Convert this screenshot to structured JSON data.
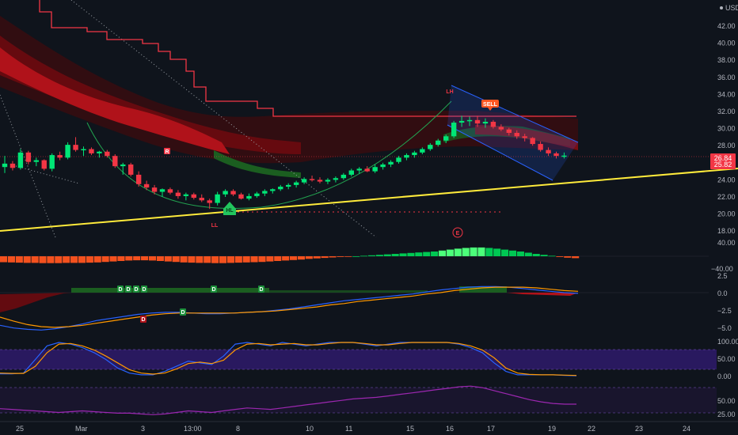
{
  "header": {
    "currency": "USD"
  },
  "chart_data": [
    {
      "type": "candlestick",
      "pane": "price",
      "yticks": [
        42.0,
        40.0,
        38.0,
        36.0,
        34.0,
        32.0,
        30.0,
        28.0,
        26.0,
        24.0,
        22.0,
        20.0,
        18.0
      ],
      "price_tags": [
        {
          "value": "26.84",
          "color": "#f23645"
        },
        {
          "value": "25.82",
          "color": "#f23645"
        }
      ],
      "candles": [
        [
          25.5,
          26.8,
          24.8,
          25.9
        ],
        [
          25.9,
          26.2,
          25.1,
          25.4
        ],
        [
          25.4,
          27.6,
          25.2,
          27.2
        ],
        [
          27.2,
          27.4,
          25.8,
          26.1
        ],
        [
          26.1,
          26.6,
          25.6,
          26.3
        ],
        [
          26.3,
          26.4,
          25.1,
          25.3
        ],
        [
          25.3,
          27.1,
          25.0,
          26.9
        ],
        [
          26.9,
          27.3,
          26.3,
          26.6
        ],
        [
          26.6,
          28.4,
          26.4,
          28.1
        ],
        [
          28.1,
          29.0,
          27.3,
          27.5
        ],
        [
          27.5,
          27.9,
          26.8,
          27.6
        ],
        [
          27.6,
          27.8,
          26.9,
          27.1
        ],
        [
          27.1,
          27.4,
          26.6,
          27.3
        ],
        [
          27.3,
          27.5,
          26.6,
          26.8
        ],
        [
          26.8,
          27.0,
          25.4,
          25.6
        ],
        [
          25.6,
          26.0,
          24.6,
          25.8
        ],
        [
          25.8,
          26.0,
          24.4,
          24.6
        ],
        [
          24.6,
          25.0,
          23.2,
          23.5
        ],
        [
          23.5,
          23.9,
          22.8,
          23.1
        ],
        [
          23.1,
          23.4,
          22.3,
          22.6
        ],
        [
          22.6,
          23.0,
          22.0,
          22.9
        ],
        [
          22.9,
          23.1,
          22.3,
          22.5
        ],
        [
          22.5,
          22.8,
          21.8,
          22.1
        ],
        [
          22.1,
          22.5,
          21.6,
          22.3
        ],
        [
          22.3,
          22.5,
          21.7,
          21.9
        ],
        [
          21.9,
          22.3,
          21.4,
          21.6
        ],
        [
          21.6,
          21.8,
          20.6,
          21.3
        ],
        [
          21.3,
          22.6,
          21.0,
          22.3
        ],
        [
          22.3,
          22.9,
          22.0,
          22.7
        ],
        [
          22.7,
          22.9,
          22.1,
          22.3
        ],
        [
          22.3,
          22.5,
          21.7,
          21.8
        ],
        [
          21.8,
          22.4,
          21.6,
          22.1
        ],
        [
          22.1,
          22.6,
          21.9,
          22.4
        ],
        [
          22.4,
          22.9,
          22.1,
          22.7
        ],
        [
          22.7,
          23.0,
          22.4,
          22.9
        ],
        [
          22.9,
          23.4,
          22.7,
          23.2
        ],
        [
          23.2,
          23.6,
          22.9,
          23.4
        ],
        [
          23.4,
          23.9,
          23.1,
          23.7
        ],
        [
          23.7,
          24.3,
          23.5,
          24.1
        ],
        [
          24.1,
          24.5,
          23.8,
          24.0
        ],
        [
          24.0,
          24.3,
          23.6,
          23.8
        ],
        [
          23.8,
          24.2,
          23.5,
          24.0
        ],
        [
          24.0,
          24.4,
          23.7,
          24.2
        ],
        [
          24.2,
          24.8,
          24.0,
          24.6
        ],
        [
          24.6,
          25.3,
          24.4,
          25.1
        ],
        [
          25.1,
          25.5,
          24.7,
          25.3
        ],
        [
          25.3,
          25.6,
          24.9,
          25.0
        ],
        [
          25.0,
          25.8,
          24.8,
          25.5
        ],
        [
          25.5,
          26.0,
          25.2,
          25.8
        ],
        [
          25.8,
          26.3,
          25.5,
          26.1
        ],
        [
          26.1,
          26.8,
          25.9,
          26.6
        ],
        [
          26.6,
          27.1,
          26.3,
          26.9
        ],
        [
          26.9,
          27.4,
          26.6,
          27.2
        ],
        [
          27.2,
          27.8,
          27.0,
          27.6
        ],
        [
          27.6,
          28.3,
          27.4,
          28.1
        ],
        [
          28.1,
          28.8,
          27.9,
          28.6
        ],
        [
          28.6,
          29.3,
          28.3,
          29.1
        ],
        [
          29.1,
          30.9,
          28.9,
          30.7
        ],
        [
          30.7,
          31.5,
          30.2,
          30.9
        ],
        [
          30.9,
          31.4,
          30.3,
          31.0
        ],
        [
          31.0,
          31.5,
          30.2,
          30.6
        ],
        [
          30.6,
          31.2,
          30.1,
          30.8
        ],
        [
          30.8,
          31.0,
          30.0,
          30.2
        ],
        [
          30.2,
          30.5,
          29.7,
          29.9
        ],
        [
          29.9,
          30.1,
          29.2,
          29.5
        ],
        [
          29.5,
          29.8,
          28.8,
          29.1
        ],
        [
          29.1,
          29.4,
          28.5,
          28.9
        ],
        [
          28.9,
          29.0,
          28.0,
          28.2
        ],
        [
          28.2,
          28.5,
          27.3,
          27.5
        ],
        [
          27.5,
          27.8,
          26.8,
          27.1
        ],
        [
          27.1,
          27.3,
          26.5,
          26.8
        ],
        [
          26.8,
          27.2,
          26.5,
          26.84
        ]
      ],
      "annotations": [
        "R",
        "LH",
        "SELL",
        "LL",
        "HL",
        "E"
      ]
    },
    {
      "type": "histogram",
      "pane": "momentum",
      "yticks": [
        "40.00",
        "−40.00"
      ],
      "values": [
        -25,
        -26,
        -27,
        -28,
        -28,
        -29,
        -29,
        -29,
        -28,
        -28,
        -28,
        -27,
        -26,
        -24,
        -22,
        -20,
        -18,
        -17,
        -17,
        -18,
        -20,
        -22,
        -24,
        -26,
        -27,
        -28,
        -28,
        -29,
        -29,
        -28,
        -27,
        -26,
        -25,
        -24,
        -22,
        -20,
        -18,
        -16,
        -14,
        -11,
        -9,
        -7,
        -5,
        -3,
        -2,
        0,
        2,
        4,
        6,
        8,
        10,
        12,
        14,
        16,
        18,
        20,
        24,
        28,
        32,
        35,
        37,
        37,
        35,
        32,
        28,
        24,
        20,
        15,
        10,
        6,
        2,
        -3,
        -6,
        -8
      ]
    },
    {
      "type": "line",
      "pane": "macd",
      "yticks": [
        "2.5",
        "0.0",
        "−2.5",
        "−5.0"
      ],
      "signals_upper": [
        "D",
        "D",
        "D",
        "D",
        "D",
        "D"
      ],
      "signals_lower": [
        "D",
        "D"
      ],
      "series": [
        {
          "color": "#2962ff",
          "values": [
            -4.8,
            -5.2,
            -5.4,
            -5.5,
            -5.3,
            -5.0,
            -4.6,
            -4.1,
            -3.8,
            -3.5,
            -3.2,
            -3.0,
            -2.9,
            -2.9,
            -3.0,
            -3.1,
            -3.1,
            -3.0,
            -2.9,
            -2.8,
            -2.6,
            -2.4,
            -2.1,
            -1.8,
            -1.5,
            -1.2,
            -1.0,
            -0.8,
            -0.6,
            -0.4,
            -0.2,
            0.1,
            0.4,
            0.6,
            0.8,
            0.9,
            0.9,
            0.8,
            0.6,
            0.4,
            0.2,
            0.0,
            -0.1
          ]
        },
        {
          "color": "#ff9800",
          "values": [
            -3.6,
            -4.2,
            -4.7,
            -5.0,
            -5.1,
            -5.0,
            -4.8,
            -4.5,
            -4.2,
            -3.9,
            -3.6,
            -3.3,
            -3.1,
            -3.0,
            -3.0,
            -3.0,
            -3.0,
            -3.0,
            -2.9,
            -2.8,
            -2.7,
            -2.5,
            -2.3,
            -2.1,
            -1.8,
            -1.6,
            -1.3,
            -1.1,
            -0.9,
            -0.7,
            -0.5,
            -0.2,
            0.0,
            0.3,
            0.5,
            0.7,
            0.8,
            0.8,
            0.8,
            0.7,
            0.5,
            0.3,
            0.2
          ]
        }
      ]
    },
    {
      "type": "line",
      "pane": "stochastic",
      "yticks": [
        "100.00",
        "50.00",
        "0.00"
      ],
      "series": [
        {
          "color": "#2962ff",
          "values": [
            8,
            8,
            10,
            50,
            90,
            100,
            95,
            85,
            70,
            50,
            25,
            10,
            5,
            5,
            15,
            30,
            45,
            40,
            35,
            60,
            95,
            100,
            95,
            90,
            100,
            95,
            90,
            95,
            100,
            100,
            100,
            95,
            90,
            95,
            100,
            100,
            100,
            100,
            100,
            95,
            85,
            70,
            40,
            15,
            5,
            5,
            5,
            5,
            3,
            2
          ]
        },
        {
          "color": "#ff9800",
          "values": [
            10,
            9,
            9,
            30,
            70,
            95,
            97,
            90,
            78,
            60,
            40,
            20,
            10,
            7,
            10,
            22,
            38,
            42,
            38,
            48,
            78,
            95,
            97,
            93,
            95,
            97,
            93,
            93,
            97,
            100,
            100,
            97,
            93,
            93,
            97,
            100,
            100,
            100,
            100,
            97,
            90,
            78,
            55,
            25,
            10,
            6,
            5,
            5,
            4,
            3
          ]
        }
      ]
    },
    {
      "type": "line",
      "pane": "rsi",
      "yticks": [
        "50.00",
        "25.00"
      ],
      "series": [
        {
          "color": "#9c27b0",
          "values": [
            34,
            33,
            32,
            31,
            30,
            29,
            30,
            31,
            30,
            29,
            28,
            28,
            27,
            26,
            27,
            29,
            31,
            30,
            29,
            31,
            33,
            35,
            34,
            33,
            35,
            37,
            39,
            41,
            43,
            45,
            47,
            48,
            49,
            51,
            53,
            55,
            57,
            59,
            61,
            63,
            64,
            62,
            58,
            54,
            50,
            46,
            43,
            41,
            40,
            40
          ]
        }
      ]
    }
  ],
  "x_axis": {
    "labels": [
      "25",
      "Mar",
      "3",
      "13:00",
      "8",
      "10",
      "11",
      "15",
      "16",
      "17",
      "19",
      "22",
      "23",
      "24"
    ]
  },
  "colors": {
    "background": "#0f141c",
    "up": "#00e676",
    "down": "#f23645",
    "trendline": "#ffeb3b",
    "channel": "#2962ff"
  }
}
